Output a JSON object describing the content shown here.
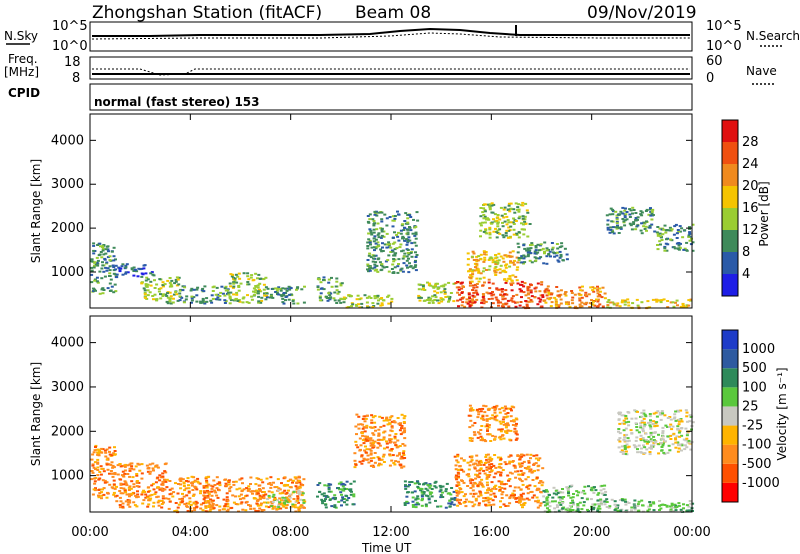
{
  "header": {
    "station": "Zhongshan Station (fitACF)",
    "beam": "Beam 08",
    "date": "09/Nov/2019"
  },
  "top_strip": {
    "left_label": "N.Sky",
    "right_label": "N.Search",
    "left_ticks": [
      "10^5",
      "10^0"
    ],
    "right_ticks": [
      "10^5",
      "10^0"
    ]
  },
  "freq_strip": {
    "left_label_1": "Freq.",
    "left_label_2": "[MHz]",
    "right_label": "Nave",
    "left_ticks": [
      "18",
      "8"
    ],
    "right_ticks": [
      "60",
      "0"
    ]
  },
  "cpid": {
    "label": "CPID",
    "mode_text": "normal (fast stereo) 153"
  },
  "x_axis": {
    "label": "Time UT",
    "ticks": [
      "00:00",
      "04:00",
      "08:00",
      "12:00",
      "16:00",
      "20:00",
      "00:00"
    ]
  },
  "colors": {
    "power": [
      "#1e1ee6",
      "#2a5aa8",
      "#3f8a5a",
      "#9acd32",
      "#f5c400",
      "#f08a1e",
      "#f05010",
      "#e01010"
    ],
    "velocity": [
      "#ff0000",
      "#ff5000",
      "#ff8c1e",
      "#ffb400",
      "#c8c8c0",
      "#5ac83c",
      "#2e8a5a",
      "#2e5aa0",
      "#1e3cc8"
    ]
  },
  "chart_data": [
    {
      "type": "heatmap",
      "panel": "power",
      "ylabel": "Slant Range [km]",
      "xlabel": "Time UT",
      "yticks": [
        1000,
        2000,
        3000,
        4000
      ],
      "ylim": [
        180,
        4600
      ],
      "xlim_hours": [
        0,
        24
      ],
      "colorbar": {
        "title": "Power [dB]",
        "ticks": [
          "4",
          "8",
          "12",
          "16",
          "20",
          "24",
          "28"
        ],
        "range": [
          0,
          32
        ]
      },
      "regions": [
        {
          "t0": 0.0,
          "t1": 1.0,
          "r0": 500,
          "r1": 1700,
          "level": 2
        },
        {
          "t0": 1.0,
          "t1": 2.5,
          "r0": 900,
          "r1": 1200,
          "level": 1
        },
        {
          "t0": 2.0,
          "t1": 3.5,
          "r0": 300,
          "r1": 900,
          "level": 3
        },
        {
          "t0": 3.5,
          "t1": 5.5,
          "r0": 300,
          "r1": 700,
          "level": 2
        },
        {
          "t0": 5.5,
          "t1": 7.0,
          "r0": 300,
          "r1": 1000,
          "level": 3
        },
        {
          "t0": 7.0,
          "t1": 8.5,
          "r0": 300,
          "r1": 700,
          "level": 2
        },
        {
          "t0": 9.0,
          "t1": 10.0,
          "r0": 300,
          "r1": 900,
          "level": 2
        },
        {
          "t0": 10.0,
          "t1": 12.0,
          "r0": 200,
          "r1": 500,
          "level": 3
        },
        {
          "t0": 11.0,
          "t1": 13.0,
          "r0": 1000,
          "r1": 2400,
          "level": 2
        },
        {
          "t0": 13.0,
          "t1": 14.5,
          "r0": 300,
          "r1": 800,
          "level": 3
        },
        {
          "t0": 14.5,
          "t1": 18.0,
          "r0": 200,
          "r1": 800,
          "level": 6
        },
        {
          "t0": 15.0,
          "t1": 17.0,
          "r0": 800,
          "r1": 1500,
          "level": 4
        },
        {
          "t0": 15.5,
          "t1": 17.5,
          "r0": 1800,
          "r1": 2600,
          "level": 3
        },
        {
          "t0": 17.0,
          "t1": 19.0,
          "r0": 1200,
          "r1": 1700,
          "level": 2
        },
        {
          "t0": 18.0,
          "t1": 20.5,
          "r0": 200,
          "r1": 700,
          "level": 5
        },
        {
          "t0": 20.5,
          "t1": 24.0,
          "r0": 200,
          "r1": 400,
          "level": 4
        },
        {
          "t0": 20.5,
          "t1": 22.5,
          "r0": 1900,
          "r1": 2500,
          "level": 2
        },
        {
          "t0": 22.5,
          "t1": 24.0,
          "r0": 1500,
          "r1": 2100,
          "level": 2
        }
      ]
    },
    {
      "type": "heatmap",
      "panel": "velocity",
      "ylabel": "Slant Range [km]",
      "xlabel": "Time UT",
      "yticks": [
        1000,
        2000,
        3000,
        4000
      ],
      "ylim": [
        180,
        4600
      ],
      "xlim_hours": [
        0,
        24
      ],
      "colorbar": {
        "title": "Velocity [m s⁻¹]",
        "ticks": [
          "1000",
          "500",
          "100",
          "25",
          "-25",
          "-100",
          "-500",
          "-1000"
        ]
      },
      "regions": [
        {
          "t0": 0.0,
          "t1": 1.0,
          "r0": 500,
          "r1": 1700,
          "level": 2
        },
        {
          "t0": 1.0,
          "t1": 3.0,
          "r0": 300,
          "r1": 1300,
          "level": 2
        },
        {
          "t0": 3.0,
          "t1": 8.5,
          "r0": 200,
          "r1": 1000,
          "level": 2
        },
        {
          "t0": 7.0,
          "t1": 8.5,
          "r0": 300,
          "r1": 700,
          "level": 4
        },
        {
          "t0": 9.0,
          "t1": 10.5,
          "r0": 300,
          "r1": 900,
          "level": 6
        },
        {
          "t0": 10.5,
          "t1": 12.5,
          "r0": 1200,
          "r1": 2400,
          "level": 2
        },
        {
          "t0": 12.5,
          "t1": 14.5,
          "r0": 300,
          "r1": 900,
          "level": 6
        },
        {
          "t0": 14.5,
          "t1": 18.0,
          "r0": 300,
          "r1": 1500,
          "level": 2
        },
        {
          "t0": 15.0,
          "t1": 17.0,
          "r0": 1800,
          "r1": 2600,
          "level": 2
        },
        {
          "t0": 18.0,
          "t1": 20.5,
          "r0": 200,
          "r1": 800,
          "level": 5
        },
        {
          "t0": 20.0,
          "t1": 24.0,
          "r0": 200,
          "r1": 500,
          "level": 5
        },
        {
          "t0": 21.0,
          "t1": 24.0,
          "r0": 1500,
          "r1": 2500,
          "level": 4
        }
      ]
    }
  ]
}
